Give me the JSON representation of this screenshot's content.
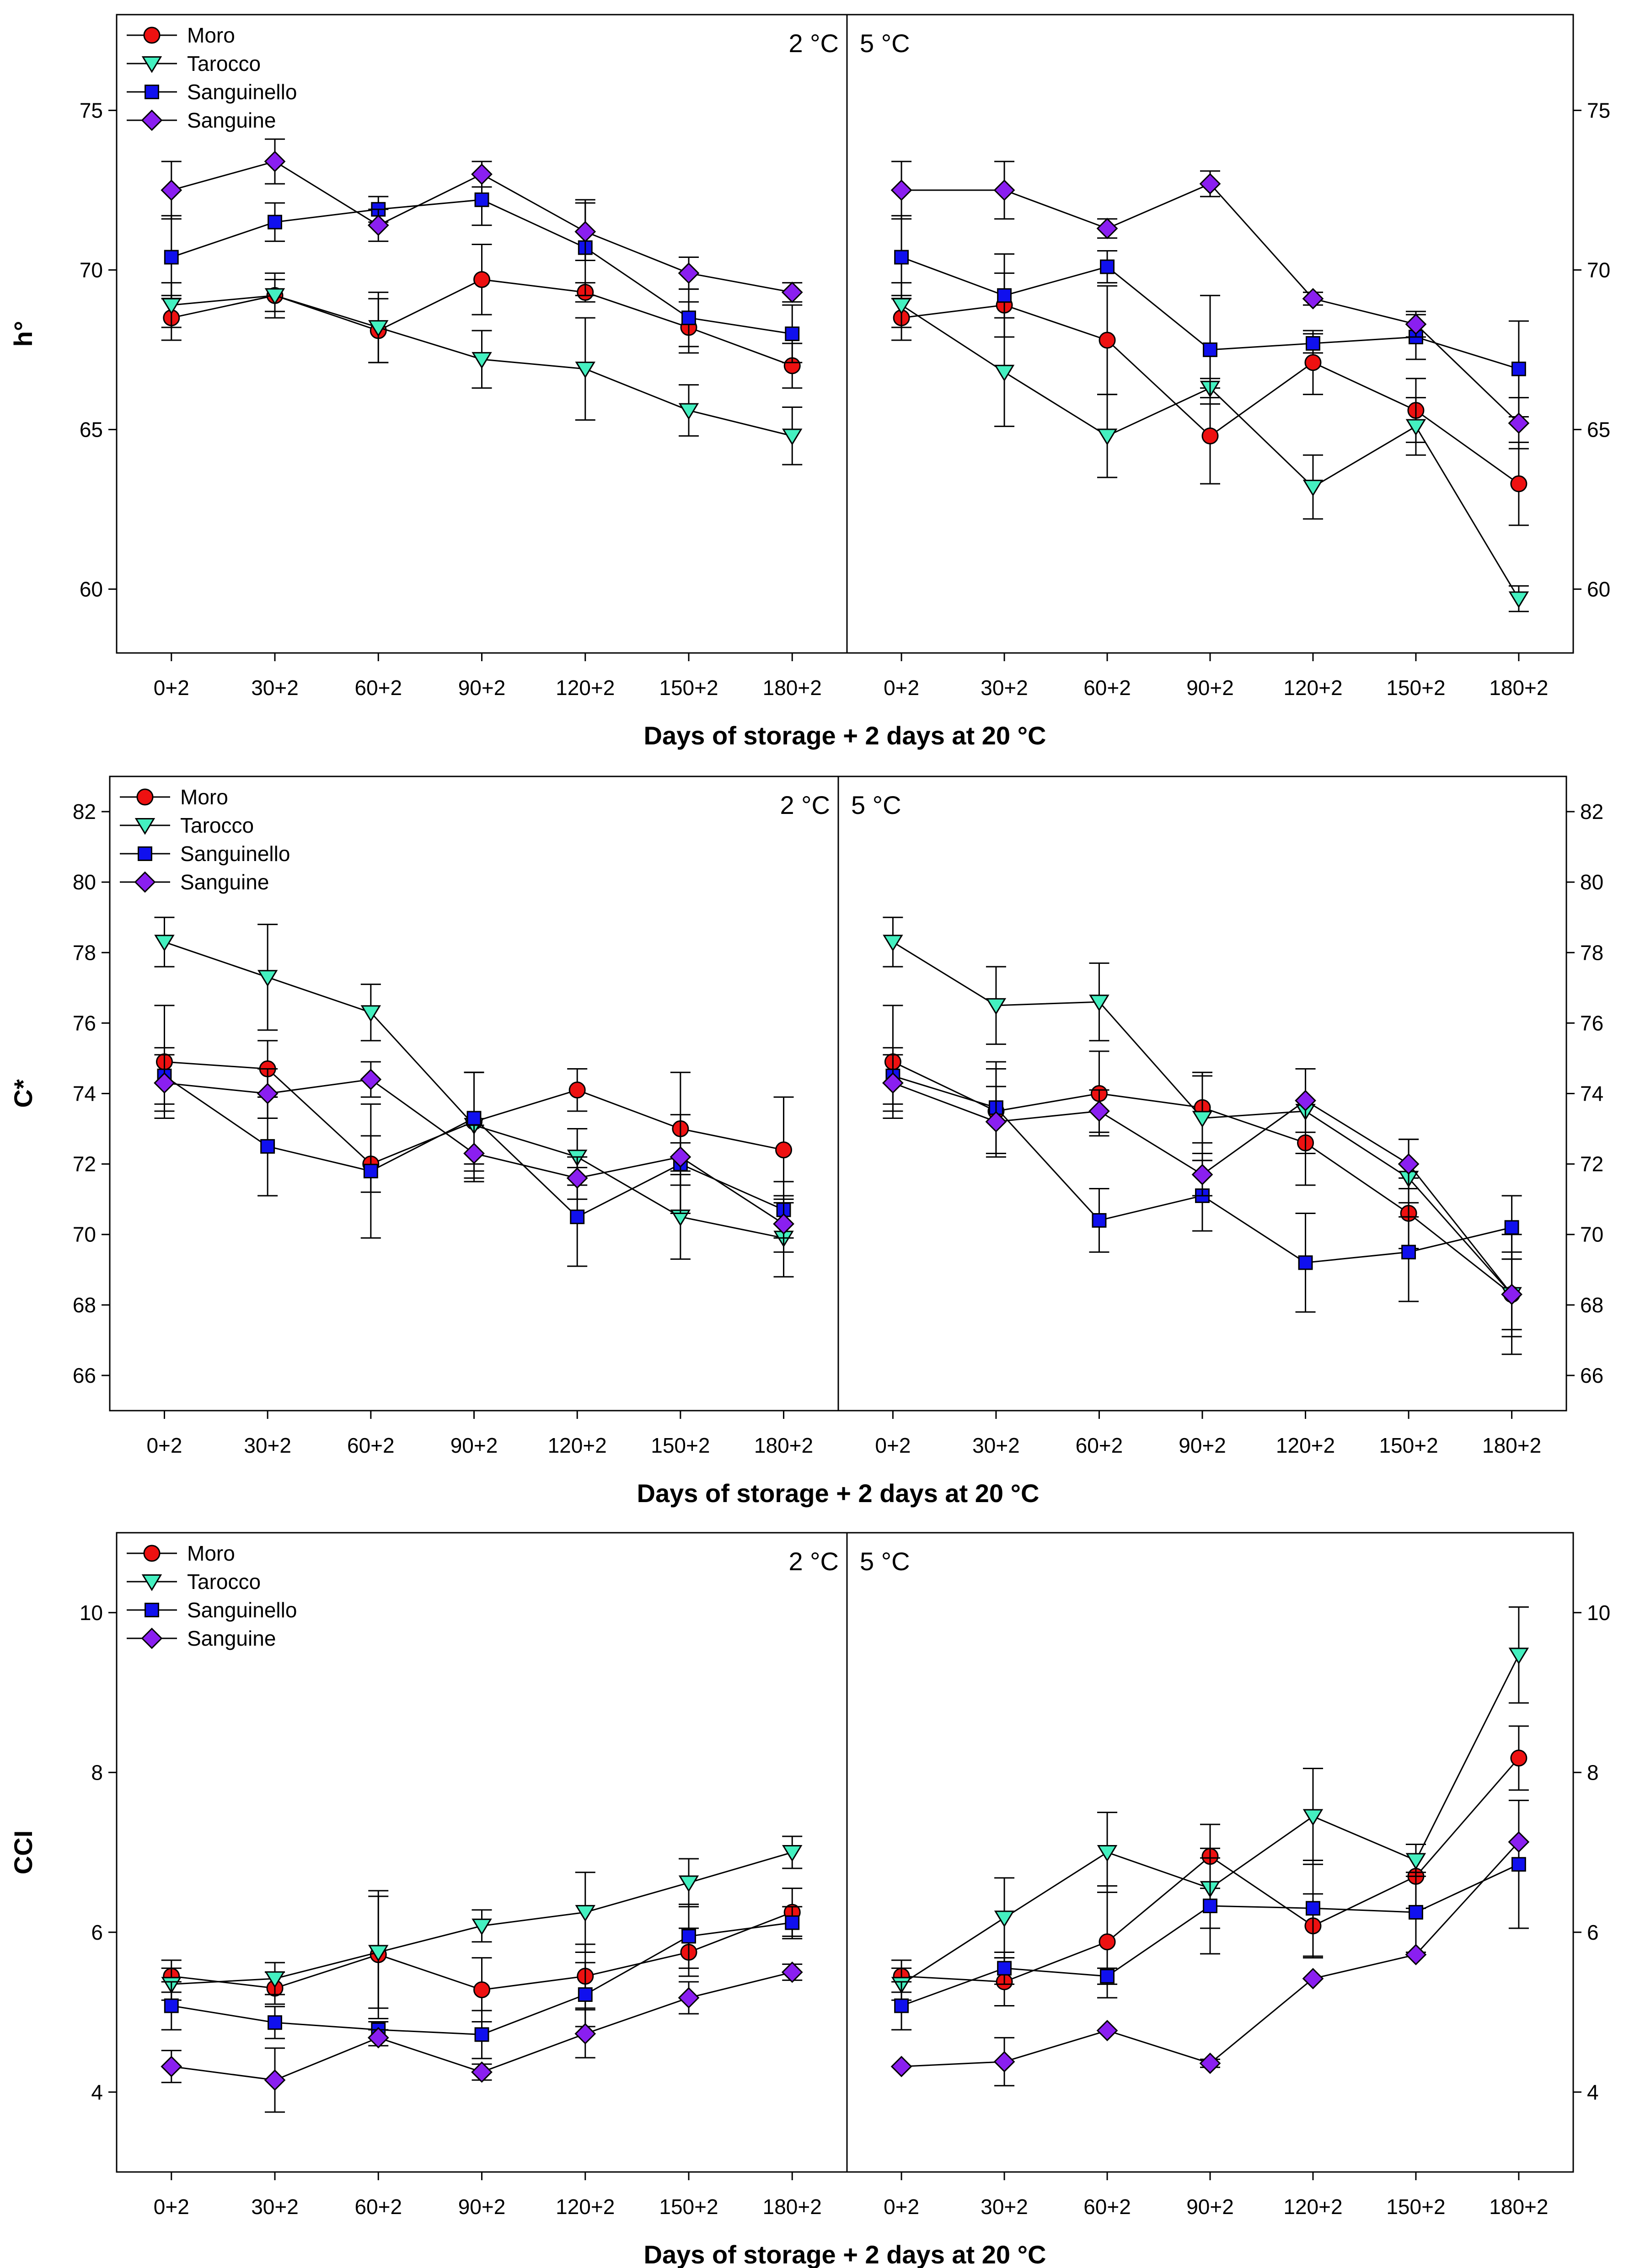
{
  "series_styles": [
    {
      "name": "Moro",
      "marker": "circle",
      "color": "#ee1111"
    },
    {
      "name": "Tarocco",
      "marker": "triangle-down",
      "color": "#44f0c0"
    },
    {
      "name": "Sanguinello",
      "marker": "square",
      "color": "#1010ee"
    },
    {
      "name": "Sanguine",
      "marker": "diamond",
      "color": "#8a1ff0"
    }
  ],
  "chart_data": [
    {
      "type": "line",
      "ylabel": "h°",
      "xlabel": "Days of storage + 2 days at 20 °C",
      "categories": [
        "0+2",
        "30+2",
        "60+2",
        "90+2",
        "120+2",
        "150+2",
        "180+2"
      ],
      "ylim": [
        58,
        78
      ],
      "yticks": [
        60,
        65,
        70,
        75
      ],
      "panels": [
        {
          "label": "2 °C",
          "series": [
            {
              "name": "Moro",
              "values": [
                68.5,
                69.2,
                68.1,
                69.7,
                69.3,
                68.2,
                67.0
              ],
              "errors": [
                0.7,
                0.5,
                1.0,
                1.1,
                0.3,
                0.8,
                0.7
              ]
            },
            {
              "name": "Tarocco",
              "values": [
                68.9,
                69.2,
                68.2,
                67.2,
                66.9,
                65.6,
                64.8
              ],
              "errors": [
                0.7,
                0.7,
                1.1,
                0.9,
                1.6,
                0.8,
                0.9
              ]
            },
            {
              "name": "Sanguinello",
              "values": [
                70.4,
                71.5,
                71.9,
                72.2,
                70.7,
                68.5,
                68.0
              ],
              "errors": [
                1.3,
                0.6,
                0.4,
                0.8,
                1.5,
                0.9,
                0.9
              ]
            },
            {
              "name": "Sanguine",
              "values": [
                72.5,
                73.4,
                71.4,
                73.0,
                71.2,
                69.9,
                69.3
              ],
              "errors": [
                0.9,
                0.7,
                0.5,
                0.4,
                0.9,
                0.5,
                0.3
              ]
            }
          ]
        },
        {
          "label": "5 °C",
          "series": [
            {
              "name": "Moro",
              "values": [
                68.5,
                68.9,
                67.8,
                64.8,
                67.1,
                65.6,
                63.3
              ],
              "errors": [
                0.7,
                1.0,
                1.7,
                1.5,
                1.0,
                1.0,
                1.3
              ]
            },
            {
              "name": "Tarocco",
              "values": [
                68.9,
                66.8,
                64.8,
                66.3,
                63.2,
                65.1,
                59.7
              ],
              "errors": [
                0.7,
                1.7,
                1.3,
                0.3,
                1.0,
                0.9,
                0.4
              ]
            },
            {
              "name": "Sanguinello",
              "values": [
                70.4,
                69.2,
                70.1,
                67.5,
                67.7,
                67.9,
                66.9
              ],
              "errors": [
                1.3,
                1.3,
                0.5,
                1.7,
                0.3,
                0.7,
                1.5
              ]
            },
            {
              "name": "Sanguine",
              "values": [
                72.5,
                72.5,
                71.3,
                72.7,
                69.1,
                68.3,
                65.2
              ],
              "errors": [
                0.9,
                0.9,
                0.3,
                0.4,
                0.2,
                0.4,
                0.8
              ]
            }
          ]
        }
      ]
    },
    {
      "type": "line",
      "ylabel": "C*",
      "xlabel": "Days of storage + 2 days at 20 °C",
      "categories": [
        "0+2",
        "30+2",
        "60+2",
        "90+2",
        "120+2",
        "150+2",
        "180+2"
      ],
      "ylim": [
        65,
        83
      ],
      "yticks": [
        66,
        68,
        70,
        72,
        74,
        76,
        78,
        80,
        82
      ],
      "panels": [
        {
          "label": "2 °C",
          "series": [
            {
              "name": "Moro",
              "values": [
                74.9,
                74.7,
                72.0,
                73.2,
                74.1,
                73.0,
                72.4
              ],
              "errors": [
                1.6,
                0.8,
                0.8,
                1.4,
                0.6,
                1.6,
                1.5
              ]
            },
            {
              "name": "Tarocco",
              "values": [
                78.3,
                77.3,
                76.3,
                73.1,
                72.2,
                70.5,
                69.9
              ],
              "errors": [
                0.7,
                1.5,
                0.8,
                1.5,
                0.8,
                1.2,
                1.1
              ]
            },
            {
              "name": "Sanguinello",
              "values": [
                74.5,
                72.5,
                71.8,
                73.3,
                70.5,
                72.0,
                70.7
              ],
              "errors": [
                0.8,
                1.4,
                1.9,
                1.3,
                1.4,
                1.4,
                0.8
              ]
            },
            {
              "name": "Sanguine",
              "values": [
                74.3,
                74.0,
                74.4,
                72.3,
                71.6,
                72.2,
                70.3
              ],
              "errors": [
                0.8,
                0.7,
                0.5,
                0.8,
                0.6,
                0.4,
                0.8
              ]
            }
          ]
        },
        {
          "label": "5 °C",
          "series": [
            {
              "name": "Moro",
              "values": [
                74.9,
                73.5,
                74.0,
                73.6,
                72.6,
                70.6,
                68.3
              ],
              "errors": [
                1.6,
                1.2,
                1.2,
                1.0,
                1.2,
                1.0,
                1.7
              ]
            },
            {
              "name": "Tarocco",
              "values": [
                78.3,
                76.5,
                76.6,
                73.3,
                73.5,
                71.6,
                68.3
              ],
              "errors": [
                0.7,
                1.1,
                1.1,
                1.2,
                1.2,
                1.1,
                1.2
              ]
            },
            {
              "name": "Sanguinello",
              "values": [
                74.5,
                73.6,
                70.4,
                71.1,
                69.2,
                69.5,
                70.2
              ],
              "errors": [
                0.8,
                1.3,
                0.9,
                1.0,
                1.4,
                1.4,
                0.9
              ]
            },
            {
              "name": "Sanguine",
              "values": [
                74.3,
                73.2,
                73.5,
                71.7,
                73.8,
                72.0,
                68.3
              ],
              "errors": [
                0.8,
                1.0,
                0.6,
                0.6,
                0.9,
                0.7,
                1.0
              ]
            }
          ]
        }
      ]
    },
    {
      "type": "line",
      "ylabel": "CCI",
      "xlabel": "Days of storage + 2 days at 20 °C",
      "categories": [
        "0+2",
        "30+2",
        "60+2",
        "90+2",
        "120+2",
        "150+2",
        "180+2"
      ],
      "ylim": [
        3,
        11
      ],
      "yticks": [
        4,
        6,
        8,
        10
      ],
      "panels": [
        {
          "label": "2 °C",
          "series": [
            {
              "name": "Moro",
              "values": [
                5.45,
                5.3,
                5.72,
                5.28,
                5.45,
                5.75,
                6.25
              ],
              "errors": [
                0.2,
                0.2,
                0.8,
                0.4,
                0.4,
                0.3,
                0.3
              ]
            },
            {
              "name": "Tarocco",
              "values": [
                5.35,
                5.42,
                5.75,
                6.08,
                6.25,
                6.62,
                7.0
              ],
              "errors": [
                0.2,
                0.2,
                0.7,
                0.2,
                0.5,
                0.3,
                0.2
              ]
            },
            {
              "name": "Sanguinello",
              "values": [
                5.08,
                4.87,
                4.78,
                4.72,
                5.22,
                5.95,
                6.12
              ],
              "errors": [
                0.3,
                0.2,
                0.1,
                0.3,
                0.4,
                0.4,
                0.2
              ]
            },
            {
              "name": "Sanguine",
              "values": [
                4.32,
                4.15,
                4.68,
                4.25,
                4.73,
                5.18,
                5.5
              ],
              "errors": [
                0.2,
                0.4,
                0.1,
                0.1,
                0.3,
                0.2,
                0.1
              ]
            }
          ]
        },
        {
          "label": "5 °C",
          "series": [
            {
              "name": "Moro",
              "values": [
                5.45,
                5.38,
                5.88,
                6.95,
                6.08,
                6.7,
                8.18
              ],
              "errors": [
                0.2,
                0.3,
                0.7,
                0.4,
                0.4,
                0.4,
                0.4
              ]
            },
            {
              "name": "Tarocco",
              "values": [
                5.35,
                6.18,
                7.0,
                6.55,
                7.45,
                6.9,
                9.47
              ],
              "errors": [
                0.2,
                0.5,
                0.5,
                0.5,
                0.6,
                0.2,
                0.6
              ]
            },
            {
              "name": "Sanguinello",
              "values": [
                5.08,
                5.55,
                5.45,
                6.33,
                6.3,
                6.25,
                6.85
              ],
              "errors": [
                0.3,
                0.2,
                0.1,
                0.6,
                0.6,
                0.5,
                0.8
              ]
            },
            {
              "name": "Sanguine",
              "values": [
                4.32,
                4.38,
                4.77,
                4.36,
                5.42,
                5.72,
                7.13
              ],
              "errors": [
                0.0,
                0.3,
                0.0,
                0.05,
                0.0,
                0.0,
                0.0
              ]
            }
          ]
        }
      ]
    }
  ]
}
